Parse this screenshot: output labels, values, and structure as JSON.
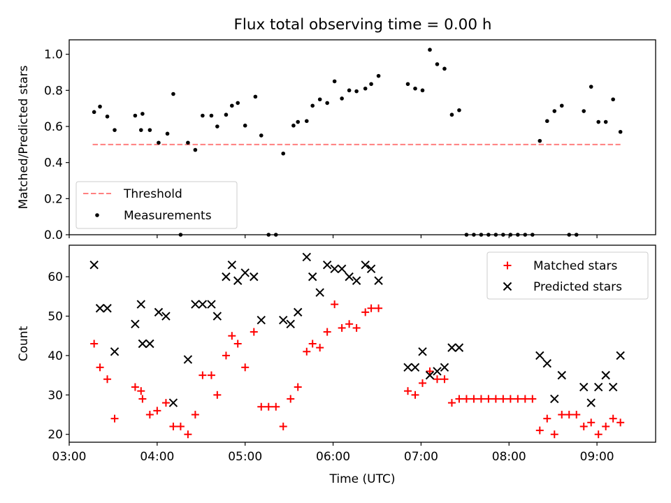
{
  "figure_title": "Flux total observing time = 0.00 h",
  "colors": {
    "threshold": "#ff7f7f",
    "measurement": "#000000",
    "matched": "#ff0000",
    "predicted": "#000000"
  },
  "chart_data": [
    {
      "type": "scatter",
      "title": "Flux total observing time = 0.00 h",
      "ylabel": "Matched/Predicted stars",
      "xlabel": "",
      "xlim": [
        "03:00",
        "09:40"
      ],
      "ylim": [
        0,
        1.08
      ],
      "y_ticks": [
        "0.0",
        "0.2",
        "0.4",
        "0.6",
        "0.8",
        "1.0"
      ],
      "x_ticks_unlabeled": [
        "03:00",
        "04:00",
        "05:00",
        "06:00",
        "07:00",
        "08:00",
        "09:00"
      ],
      "legend": "lower-left",
      "series": [
        {
          "name": "Threshold",
          "kind": "dashed-line",
          "points": [
            [
              "03:16",
              0.5
            ],
            [
              "09:16",
              0.5
            ]
          ]
        },
        {
          "name": "Measurements",
          "kind": "dot",
          "points": [
            [
              "03:17",
              0.68
            ],
            [
              "03:21",
              0.71
            ],
            [
              "03:26",
              0.655
            ],
            [
              "03:31",
              0.58
            ],
            [
              "03:45",
              0.66
            ],
            [
              "03:49",
              0.58
            ],
            [
              "03:50",
              0.67
            ],
            [
              "03:55",
              0.58
            ],
            [
              "04:01",
              0.51
            ],
            [
              "04:07",
              0.56
            ],
            [
              "04:11",
              0.78
            ],
            [
              "04:16",
              0.0
            ],
            [
              "04:21",
              0.51
            ],
            [
              "04:26",
              0.47
            ],
            [
              "04:31",
              0.66
            ],
            [
              "04:37",
              0.66
            ],
            [
              "04:41",
              0.6
            ],
            [
              "04:47",
              0.665
            ],
            [
              "04:51",
              0.715
            ],
            [
              "04:55",
              0.73
            ],
            [
              "05:00",
              0.605
            ],
            [
              "05:07",
              0.765
            ],
            [
              "05:11",
              0.55
            ],
            [
              "05:16",
              0.0
            ],
            [
              "05:21",
              0.0
            ],
            [
              "05:26",
              0.45
            ],
            [
              "05:33",
              0.605
            ],
            [
              "05:36",
              0.625
            ],
            [
              "05:42",
              0.63
            ],
            [
              "05:46",
              0.715
            ],
            [
              "05:51",
              0.75
            ],
            [
              "05:56",
              0.73
            ],
            [
              "06:01",
              0.85
            ],
            [
              "06:06",
              0.755
            ],
            [
              "06:11",
              0.8
            ],
            [
              "06:16",
              0.795
            ],
            [
              "06:22",
              0.81
            ],
            [
              "06:26",
              0.835
            ],
            [
              "06:31",
              0.88
            ],
            [
              "06:51",
              0.835
            ],
            [
              "06:56",
              0.81
            ],
            [
              "07:01",
              0.8
            ],
            [
              "07:06",
              1.025
            ],
            [
              "07:11",
              0.945
            ],
            [
              "07:16",
              0.92
            ],
            [
              "07:21",
              0.665
            ],
            [
              "07:26",
              0.69
            ],
            [
              "07:31",
              0.0
            ],
            [
              "07:36",
              0.0
            ],
            [
              "07:41",
              0.0
            ],
            [
              "07:46",
              0.0
            ],
            [
              "07:51",
              0.0
            ],
            [
              "07:56",
              0.0
            ],
            [
              "08:01",
              0.0
            ],
            [
              "08:06",
              0.0
            ],
            [
              "08:11",
              0.0
            ],
            [
              "08:16",
              0.0
            ],
            [
              "08:21",
              0.52
            ],
            [
              "08:26",
              0.63
            ],
            [
              "08:31",
              0.685
            ],
            [
              "08:36",
              0.715
            ],
            [
              "08:41",
              0.0
            ],
            [
              "08:46",
              0.0
            ],
            [
              "08:51",
              0.685
            ],
            [
              "08:56",
              0.82
            ],
            [
              "09:01",
              0.625
            ],
            [
              "09:06",
              0.625
            ],
            [
              "09:11",
              0.75
            ],
            [
              "09:16",
              0.57
            ]
          ]
        }
      ]
    },
    {
      "type": "scatter",
      "title": "",
      "ylabel": "Count",
      "xlabel": "Time (UTC)",
      "xlim": [
        "03:00",
        "09:40"
      ],
      "ylim": [
        18,
        68
      ],
      "y_ticks": [
        "20",
        "30",
        "40",
        "50",
        "60"
      ],
      "x_ticks": [
        "03:00",
        "04:00",
        "05:00",
        "06:00",
        "07:00",
        "08:00",
        "09:00"
      ],
      "legend": "upper-right",
      "series": [
        {
          "name": "Matched stars",
          "marker": "+",
          "points": [
            [
              "03:17",
              43
            ],
            [
              "03:21",
              37
            ],
            [
              "03:26",
              34
            ],
            [
              "03:31",
              24
            ],
            [
              "03:45",
              32
            ],
            [
              "03:49",
              31
            ],
            [
              "03:50",
              29
            ],
            [
              "03:55",
              25
            ],
            [
              "04:00",
              26
            ],
            [
              "04:06",
              28
            ],
            [
              "04:11",
              22
            ],
            [
              "04:16",
              22
            ],
            [
              "04:21",
              20
            ],
            [
              "04:26",
              25
            ],
            [
              "04:31",
              35
            ],
            [
              "04:37",
              35
            ],
            [
              "04:41",
              30
            ],
            [
              "04:47",
              40
            ],
            [
              "04:51",
              45
            ],
            [
              "04:55",
              43
            ],
            [
              "05:00",
              37
            ],
            [
              "05:06",
              46
            ],
            [
              "05:11",
              27
            ],
            [
              "05:16",
              27
            ],
            [
              "05:21",
              27
            ],
            [
              "05:26",
              22
            ],
            [
              "05:31",
              29
            ],
            [
              "05:36",
              32
            ],
            [
              "05:42",
              41
            ],
            [
              "05:46",
              43
            ],
            [
              "05:51",
              42
            ],
            [
              "05:56",
              46
            ],
            [
              "06:01",
              53
            ],
            [
              "06:06",
              47
            ],
            [
              "06:11",
              48
            ],
            [
              "06:16",
              47
            ],
            [
              "06:22",
              51
            ],
            [
              "06:26",
              52
            ],
            [
              "06:31",
              52
            ],
            [
              "06:51",
              31
            ],
            [
              "06:56",
              30
            ],
            [
              "07:01",
              33
            ],
            [
              "07:06",
              36
            ],
            [
              "07:11",
              34
            ],
            [
              "07:16",
              34
            ],
            [
              "07:21",
              28
            ],
            [
              "07:26",
              29
            ],
            [
              "07:31",
              29
            ],
            [
              "07:36",
              29
            ],
            [
              "07:41",
              29
            ],
            [
              "07:46",
              29
            ],
            [
              "07:51",
              29
            ],
            [
              "07:56",
              29
            ],
            [
              "08:01",
              29
            ],
            [
              "08:06",
              29
            ],
            [
              "08:11",
              29
            ],
            [
              "08:16",
              29
            ],
            [
              "08:21",
              21
            ],
            [
              "08:26",
              24
            ],
            [
              "08:31",
              20
            ],
            [
              "08:36",
              25
            ],
            [
              "08:41",
              25
            ],
            [
              "08:46",
              25
            ],
            [
              "08:51",
              22
            ],
            [
              "08:56",
              23
            ],
            [
              "09:01",
              20
            ],
            [
              "09:06",
              22
            ],
            [
              "09:11",
              24
            ],
            [
              "09:16",
              23
            ]
          ]
        },
        {
          "name": "Predicted stars",
          "marker": "x",
          "points": [
            [
              "03:17",
              63
            ],
            [
              "03:21",
              52
            ],
            [
              "03:26",
              52
            ],
            [
              "03:31",
              41
            ],
            [
              "03:45",
              48
            ],
            [
              "03:49",
              53
            ],
            [
              "03:50",
              43
            ],
            [
              "03:55",
              43
            ],
            [
              "04:01",
              51
            ],
            [
              "04:06",
              50
            ],
            [
              "04:11",
              28
            ],
            [
              "04:21",
              39
            ],
            [
              "04:26",
              53
            ],
            [
              "04:31",
              53
            ],
            [
              "04:37",
              53
            ],
            [
              "04:41",
              50
            ],
            [
              "04:47",
              60
            ],
            [
              "04:51",
              63
            ],
            [
              "04:55",
              59
            ],
            [
              "05:00",
              61
            ],
            [
              "05:06",
              60
            ],
            [
              "05:11",
              49
            ],
            [
              "05:26",
              49
            ],
            [
              "05:31",
              48
            ],
            [
              "05:36",
              51
            ],
            [
              "05:42",
              65
            ],
            [
              "05:46",
              60
            ],
            [
              "05:51",
              56
            ],
            [
              "05:56",
              63
            ],
            [
              "06:01",
              62
            ],
            [
              "06:06",
              62
            ],
            [
              "06:11",
              60
            ],
            [
              "06:16",
              59
            ],
            [
              "06:22",
              63
            ],
            [
              "06:26",
              62
            ],
            [
              "06:31",
              59
            ],
            [
              "06:51",
              37
            ],
            [
              "06:56",
              37
            ],
            [
              "07:01",
              41
            ],
            [
              "07:06",
              35
            ],
            [
              "07:11",
              36
            ],
            [
              "07:16",
              37
            ],
            [
              "07:21",
              42
            ],
            [
              "07:26",
              42
            ],
            [
              "08:21",
              40
            ],
            [
              "08:26",
              38
            ],
            [
              "08:31",
              29
            ],
            [
              "08:36",
              35
            ],
            [
              "08:51",
              32
            ],
            [
              "08:56",
              28
            ],
            [
              "09:01",
              32
            ],
            [
              "09:06",
              35
            ],
            [
              "09:11",
              32
            ],
            [
              "09:16",
              40
            ]
          ]
        }
      ]
    }
  ]
}
